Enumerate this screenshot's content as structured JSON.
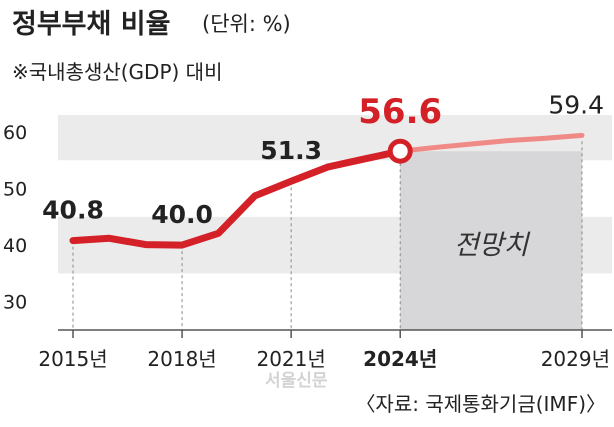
{
  "header": {
    "title": "정부부채 비율",
    "unit": "(단위: %)",
    "subtitle": "※국내총생산(GDP) 대비"
  },
  "chart_data": {
    "type": "line",
    "title": "정부부채 비율",
    "unit": "(단위: %)",
    "subtitle": "※국내총생산(GDP) 대비",
    "x": [
      2015,
      2016,
      2017,
      2018,
      2019,
      2020,
      2021,
      2022,
      2023,
      2024,
      2025,
      2026,
      2027,
      2028,
      2029
    ],
    "series": [
      {
        "values": [
          40.8,
          41.2,
          40.1,
          40.0,
          42.1,
          48.7,
          51.3,
          53.8,
          55.2,
          56.6,
          57.3,
          57.9,
          58.5,
          58.9,
          59.4
        ],
        "projected_from": 2024
      }
    ],
    "ylim": [
      25,
      63
    ],
    "yticks": [
      30,
      40,
      50,
      60
    ],
    "xticks": [
      {
        "x": 2015,
        "label": "2015년",
        "bold": false
      },
      {
        "x": 2018,
        "label": "2018년",
        "bold": false
      },
      {
        "x": 2021,
        "label": "2021년",
        "bold": false
      },
      {
        "x": 2024,
        "label": "2024년",
        "bold": true
      },
      {
        "x": 2029,
        "label": "2029년",
        "bold": false
      }
    ],
    "data_labels": [
      {
        "x": 2015,
        "text": "40.8",
        "highlight": false
      },
      {
        "x": 2018,
        "text": "40.0",
        "highlight": false
      },
      {
        "x": 2021,
        "text": "51.3",
        "highlight": false
      },
      {
        "x": 2024,
        "text": "56.6",
        "highlight": true
      },
      {
        "x": 2029,
        "text": "59.4",
        "highlight": false
      }
    ],
    "projection_label": "전망치",
    "grid_bands": true
  },
  "colors": {
    "actual_line": "#d42027",
    "projected_line": "#f08a86",
    "band": "#ebebeb",
    "projection_shade": "#d7d7d9",
    "highlight_label": "#d42027",
    "text": "#222222"
  },
  "footer": {
    "watermark": "서울신문",
    "source": "〈자료: 국제통화기금(IMF)〉"
  }
}
